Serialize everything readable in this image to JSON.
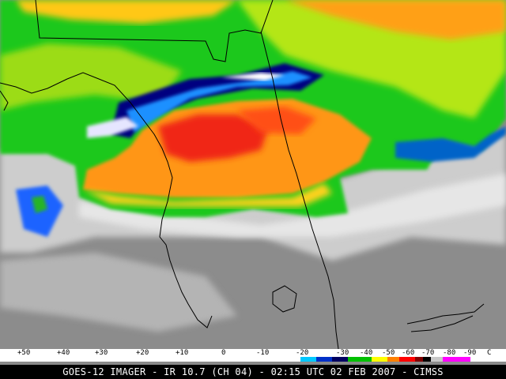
{
  "caption": "GOES-12 IMAGER - IR 10.7 (CH 04) - 02:15 UTC 02 FEB 2007 - CIMSS",
  "colorbar": {
    "ticks": [
      "+50",
      "+40",
      "+30",
      "+20",
      "+10",
      "0",
      "-10",
      "-20",
      "-30",
      "-40",
      "-50",
      "-60",
      "-70",
      "-80",
      "-90"
    ],
    "unit": "C",
    "colors": {
      "warm_gray_light": "#ffffff",
      "warm_gray_dark": "#4a4a4a",
      "cyan": "#00c8ff",
      "blue": "#0030c8",
      "navy": "#000060",
      "green": "#00c000",
      "yellow": "#ffff00",
      "orange": "#ff8000",
      "red": "#ff0000",
      "dark_red": "#800000",
      "black": "#000000",
      "magenta": "#ff00ff"
    }
  },
  "map": {
    "colors": {
      "clear_gray": "#8c8c8c",
      "low_cloud": "#cfcfcf",
      "mid_cloud_green": "#1ec81e",
      "yellow_green": "#c8e614",
      "cold_orange": "#ff9614",
      "coldest_red": "#f02814",
      "cyan_edge": "#00aaff",
      "navy_edge": "#000080",
      "coastline": "#000000"
    }
  }
}
